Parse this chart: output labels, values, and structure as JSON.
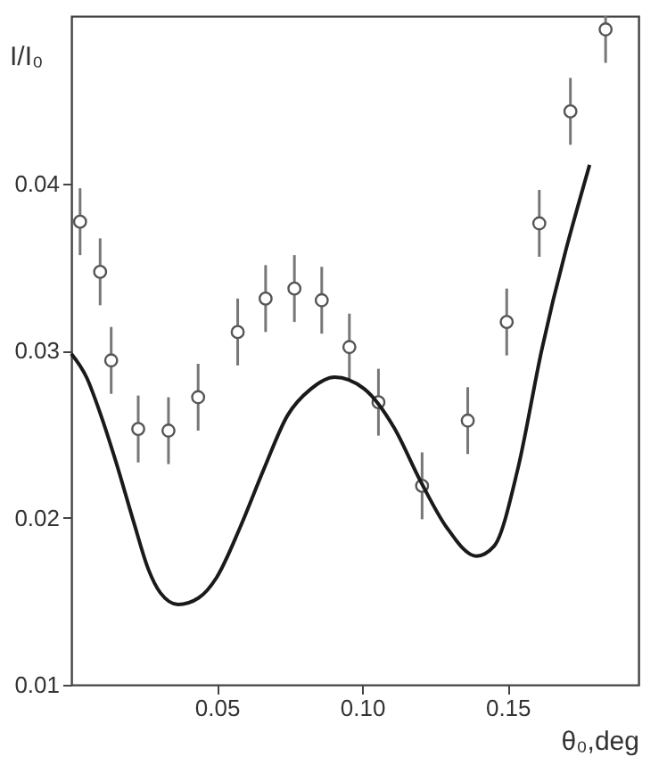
{
  "chart_data": {
    "type": "scatter",
    "xlabel": "θ₀,deg",
    "ylabel": "I/I₀",
    "xlim": [
      0,
      0.195
    ],
    "xticks": [
      0.05,
      {
        "value": 0.1,
        "label": "0.10"
      },
      0.15
    ],
    "ylim": [
      0.01,
      0.05
    ],
    "yticks": [
      0.01,
      0.02,
      0.03,
      0.04
    ],
    "grid": false,
    "series": [
      {
        "color": "#555555",
        "marker": "circle",
        "x": [
          0.003,
          0.0099,
          0.0137,
          0.023,
          0.0334,
          0.0436,
          0.0572,
          0.0668,
          0.0767,
          0.0861,
          0.0956,
          0.1056,
          0.1206,
          0.1363,
          0.1497,
          0.1609,
          0.1716,
          0.1837
        ],
        "values": [
          0.0377,
          0.0347,
          0.0294,
          0.0253,
          0.0252,
          0.0272,
          0.0311,
          0.0331,
          0.0337,
          0.033,
          0.0302,
          0.0269,
          0.0219,
          0.0258,
          0.0317,
          0.0376,
          0.0443,
          0.0492
        ],
        "errors": [
          0.002,
          0.002,
          0.002,
          0.002,
          0.002,
          0.002,
          0.002,
          0.002,
          0.002,
          0.002,
          0.002,
          0.002,
          0.002,
          0.002,
          0.002,
          0.002,
          0.002,
          [
            0.0472,
            0.05
          ]
        ]
      },
      {
        "type": "line",
        "color": "#1a1a1a",
        "line_style": "solid",
        "marker": "none",
        "x": [
          0,
          0.0052,
          0.0102,
          0.0154,
          0.0215,
          0.0265,
          0.0306,
          0.0367,
          0.0438,
          0.0499,
          0.058,
          0.0662,
          0.0743,
          0.0824,
          0.0905,
          0.1007,
          0.1109,
          0.12,
          0.1291,
          0.1393,
          0.1454,
          0.1535,
          0.1617,
          0.1782
        ],
        "values": [
          0.0298,
          0.0284,
          0.0261,
          0.0233,
          0.0197,
          0.0169,
          0.0155,
          0.0148,
          0.0152,
          0.0164,
          0.0194,
          0.0229,
          0.0261,
          0.0277,
          0.0284,
          0.0277,
          0.0254,
          0.0222,
          0.0194,
          0.0177,
          0.0183,
          0.0229,
          0.03,
          0.0411
        ]
      }
    ]
  }
}
